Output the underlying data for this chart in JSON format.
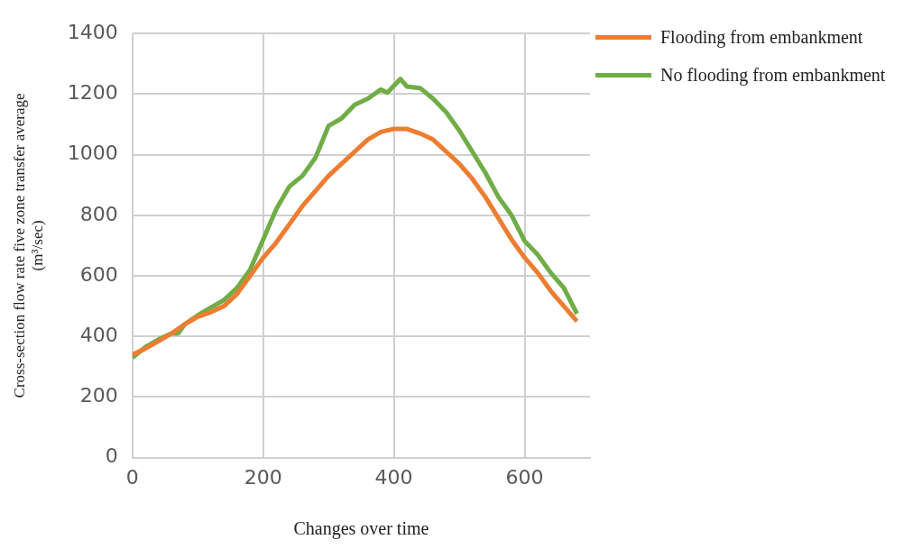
{
  "chart_data": {
    "type": "line",
    "xlabel": "Changes over time",
    "ylabel": "Cross-section flow rate five zone transfer average\n(m³/sec)",
    "xlim": [
      0,
      700
    ],
    "xticks": [
      0,
      200,
      400,
      600
    ],
    "ylim": [
      0,
      1400
    ],
    "yticks": [
      0,
      200,
      400,
      600,
      800,
      1000,
      1200,
      1400
    ],
    "grid": true,
    "legend": "top right",
    "marker": "none",
    "line_style": "solid",
    "series": [
      {
        "name": "Flooding from embankment",
        "color": "#ed7d31",
        "x": [
          0,
          20,
          40,
          60,
          80,
          100,
          120,
          140,
          160,
          180,
          200,
          220,
          240,
          260,
          280,
          300,
          320,
          340,
          360,
          380,
          400,
          420,
          440,
          460,
          480,
          500,
          520,
          540,
          560,
          580,
          600,
          620,
          640,
          660,
          680
        ],
        "values": [
          340,
          360,
          385,
          410,
          440,
          465,
          480,
          500,
          540,
          600,
          660,
          710,
          770,
          830,
          880,
          930,
          970,
          1010,
          1050,
          1075,
          1085,
          1085,
          1070,
          1050,
          1010,
          970,
          920,
          860,
          790,
          720,
          660,
          610,
          550,
          500,
          450
        ]
      },
      {
        "name": "No flooding from embankment",
        "color": "#70ad47",
        "x": [
          0,
          20,
          40,
          60,
          70,
          80,
          100,
          120,
          140,
          160,
          180,
          200,
          220,
          240,
          260,
          280,
          300,
          320,
          340,
          360,
          380,
          390,
          410,
          420,
          440,
          460,
          480,
          500,
          520,
          540,
          560,
          580,
          600,
          620,
          640,
          660,
          680
        ],
        "values": [
          330,
          365,
          390,
          410,
          410,
          440,
          470,
          495,
          520,
          560,
          620,
          720,
          820,
          895,
          930,
          990,
          1095,
          1120,
          1165,
          1185,
          1215,
          1205,
          1250,
          1225,
          1220,
          1185,
          1140,
          1080,
          1010,
          940,
          860,
          800,
          715,
          670,
          610,
          560,
          475
        ]
      }
    ]
  }
}
